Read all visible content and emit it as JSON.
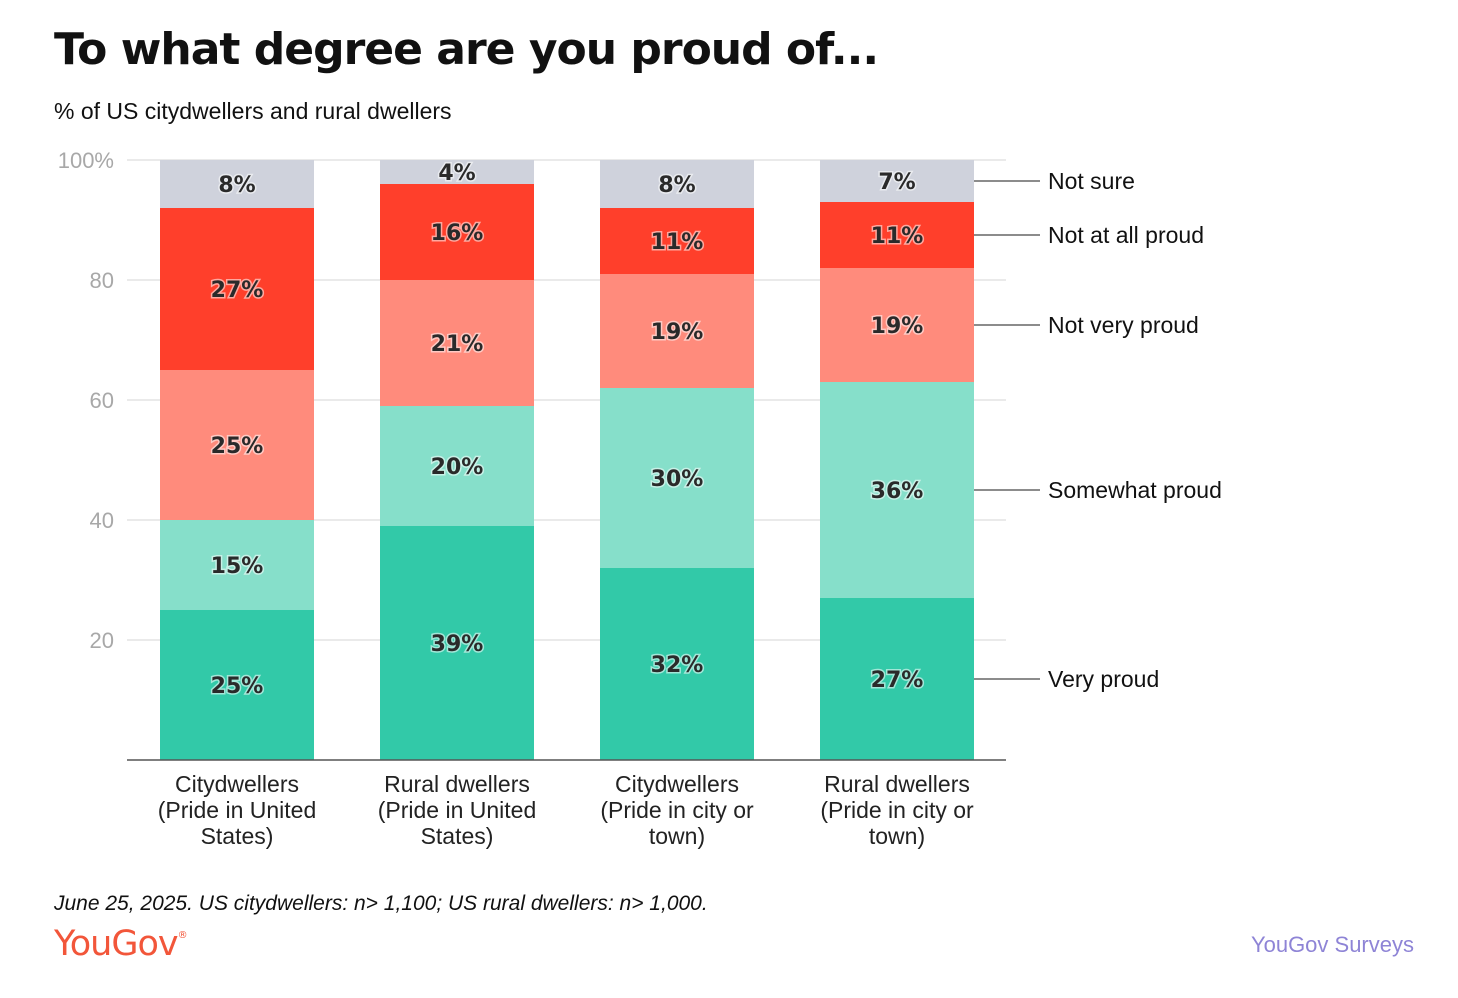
{
  "header": {
    "title": "To what degree are you proud of...",
    "subtitle": "% of US citydwellers and rural dwellers"
  },
  "footer": {
    "note": "June 25, 2025. US citydwellers: n> 1,100; US rural dwellers: n> 1,000.",
    "logo": "YouGov",
    "logo_mark": "®",
    "brand": "YouGov Surveys"
  },
  "chart_data": {
    "type": "bar",
    "stacked": true,
    "categories": [
      [
        "Citydwellers",
        "(Pride in United",
        "States)"
      ],
      [
        "Rural dwellers",
        "(Pride in United",
        "States)"
      ],
      [
        "Citydwellers",
        "(Pride in city or",
        "town)"
      ],
      [
        "Rural dwellers",
        "(Pride in city or",
        "town)"
      ]
    ],
    "series": [
      {
        "name": "Very proud",
        "color": "#32c9a8",
        "values": [
          25,
          39,
          32,
          27
        ]
      },
      {
        "name": "Somewhat proud",
        "color": "#86dfca",
        "values": [
          15,
          20,
          30,
          36
        ]
      },
      {
        "name": "Not very proud",
        "color": "#ff8b7c",
        "values": [
          25,
          21,
          19,
          19
        ]
      },
      {
        "name": "Not at all proud",
        "color": "#ff3f2b",
        "values": [
          27,
          16,
          11,
          11
        ]
      },
      {
        "name": "Not sure",
        "color": "#cfd2dc",
        "values": [
          8,
          4,
          8,
          7
        ]
      }
    ],
    "yticks": [
      "20",
      "40",
      "60",
      "80",
      "100%"
    ],
    "ytick_values": [
      20,
      40,
      60,
      80,
      100
    ],
    "ylim": [
      0,
      100
    ],
    "grid": true,
    "legend_position": "right (direct labels on last bar)",
    "value_suffix": "%"
  }
}
